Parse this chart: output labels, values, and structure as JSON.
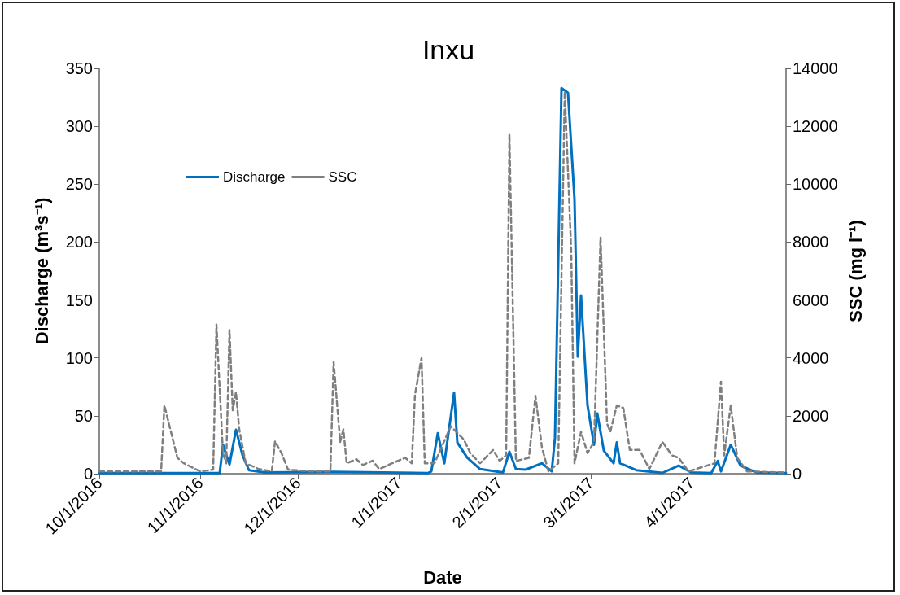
{
  "chart_data": {
    "type": "line",
    "title": "Inxu",
    "xlabel": "Date",
    "ylabel": "Discharge (m³s⁻¹)",
    "y2label": "SSC (mg l⁻¹)",
    "xlim": [
      "2016-10-01",
      "2017-04-30"
    ],
    "xticks": [
      {
        "value": "2016-10-01",
        "label": "10/1/2016"
      },
      {
        "value": "2016-11-01",
        "label": "11/1/2016"
      },
      {
        "value": "2016-12-01",
        "label": "12/1/2016"
      },
      {
        "value": "2017-01-01",
        "label": "1/1/2017"
      },
      {
        "value": "2017-02-01",
        "label": "2/1/2017"
      },
      {
        "value": "2017-03-01",
        "label": "3/1/2017"
      },
      {
        "value": "2017-04-01",
        "label": "4/1/2017"
      }
    ],
    "ylim": [
      0,
      350
    ],
    "yticks": [
      0,
      50,
      100,
      150,
      200,
      250,
      300,
      350
    ],
    "y2lim": [
      0,
      14000
    ],
    "y2ticks": [
      0,
      2000,
      4000,
      6000,
      8000,
      10000,
      12000,
      14000
    ],
    "grid": false,
    "legend": "top left",
    "marker": "none",
    "series": [
      {
        "name": "Discharge",
        "color": "#0070c0",
        "line_style": "solid",
        "x": [
          "2016-10-01",
          "2016-11-07",
          "2016-11-08",
          "2016-11-10",
          "2016-11-12",
          "2016-11-14",
          "2016-11-16",
          "2016-11-21",
          "2016-12-12",
          "2017-01-10",
          "2017-01-11",
          "2017-01-13",
          "2017-01-15",
          "2017-01-18",
          "2017-01-19",
          "2017-01-22",
          "2017-01-26",
          "2017-02-02",
          "2017-02-04",
          "2017-02-06",
          "2017-02-09",
          "2017-02-14",
          "2017-02-17",
          "2017-02-18",
          "2017-02-20",
          "2017-02-22",
          "2017-02-24",
          "2017-02-25",
          "2017-02-26",
          "2017-02-28",
          "2017-03-02",
          "2017-03-03",
          "2017-03-05",
          "2017-03-08",
          "2017-03-09",
          "2017-03-10",
          "2017-03-15",
          "2017-03-23",
          "2017-03-28",
          "2017-04-01",
          "2017-04-07",
          "2017-04-09",
          "2017-04-10",
          "2017-04-13",
          "2017-04-16",
          "2017-04-21",
          "2017-04-30"
        ],
        "values": [
          0.5,
          0.5,
          25,
          8,
          38,
          16,
          3,
          1,
          1.5,
          0.5,
          2,
          35,
          9,
          70,
          27,
          14,
          4,
          1,
          19,
          4,
          3.5,
          9,
          2,
          31,
          333,
          329,
          237,
          101,
          154,
          59,
          25,
          52,
          20,
          9,
          27,
          9,
          3,
          0.7,
          7,
          1,
          0.5,
          11,
          2,
          25,
          7,
          1,
          0.5
        ]
      },
      {
        "name": "SSC",
        "color": "#7f7f7f",
        "line_style": "dashed",
        "axis": "y2",
        "x": [
          "2016-10-01",
          "2016-10-20",
          "2016-10-21",
          "2016-10-25",
          "2016-10-27",
          "2016-11-01",
          "2016-11-05",
          "2016-11-06",
          "2016-11-08",
          "2016-11-09",
          "2016-11-10",
          "2016-11-11",
          "2016-11-12",
          "2016-11-13",
          "2016-11-15",
          "2016-11-19",
          "2016-11-23",
          "2016-11-24",
          "2016-11-26",
          "2016-11-28",
          "2016-12-05",
          "2016-12-11",
          "2016-12-12",
          "2016-12-14",
          "2016-12-15",
          "2016-12-16",
          "2016-12-19",
          "2016-12-21",
          "2016-12-24",
          "2016-12-26",
          "2016-12-30",
          "2017-01-03",
          "2017-01-05",
          "2017-01-06",
          "2017-01-08",
          "2017-01-09",
          "2017-01-12",
          "2017-01-17",
          "2017-01-21",
          "2017-01-23",
          "2017-01-26",
          "2017-01-30",
          "2017-02-01",
          "2017-02-03",
          "2017-02-04",
          "2017-02-06",
          "2017-02-10",
          "2017-02-12",
          "2017-02-14",
          "2017-02-16",
          "2017-02-19",
          "2017-02-21",
          "2017-02-23",
          "2017-02-24",
          "2017-02-26",
          "2017-02-28",
          "2017-03-02",
          "2017-03-04",
          "2017-03-06",
          "2017-03-07",
          "2017-03-09",
          "2017-03-11",
          "2017-03-13",
          "2017-03-16",
          "2017-03-19",
          "2017-03-23",
          "2017-03-26",
          "2017-03-28",
          "2017-03-31",
          "2017-04-08",
          "2017-04-10",
          "2017-04-11",
          "2017-04-13",
          "2017-04-15",
          "2017-04-18",
          "2017-04-30"
        ],
        "values": [
          80,
          80,
          2360,
          550,
          360,
          80,
          140,
          5150,
          710,
          360,
          4960,
          2190,
          2820,
          1530,
          360,
          160,
          80,
          1120,
          710,
          140,
          80,
          80,
          3860,
          1100,
          1530,
          360,
          500,
          300,
          450,
          160,
          360,
          550,
          360,
          2740,
          4000,
          360,
          360,
          1640,
          1180,
          710,
          360,
          820,
          440,
          630,
          11730,
          440,
          550,
          2690,
          900,
          80,
          360,
          13200,
          7670,
          360,
          1450,
          710,
          1100,
          8160,
          1730,
          1450,
          2360,
          2270,
          820,
          820,
          160,
          1100,
          630,
          550,
          80,
          360,
          3180,
          630,
          2360,
          550,
          80,
          40
        ]
      }
    ]
  }
}
